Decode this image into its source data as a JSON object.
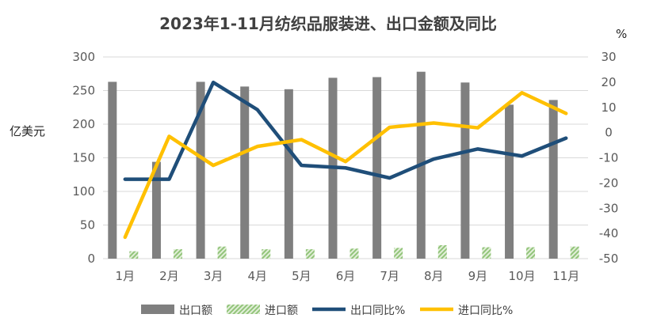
{
  "chart_data": {
    "type": "bar",
    "title": "2023年1-11月纺织品服装进、出口金额及同比",
    "ylabel": "亿美元",
    "y2label": "%",
    "ylim": [
      0,
      300
    ],
    "y2lim": [
      -50,
      30
    ],
    "yticks": [
      0,
      50,
      100,
      150,
      200,
      250,
      300
    ],
    "y2ticks": [
      -50,
      -40,
      -30,
      -20,
      -10,
      0,
      10,
      20,
      30
    ],
    "grid": true,
    "legend": "bottom",
    "categories": [
      "1月",
      "2月",
      "3月",
      "4月",
      "5月",
      "6月",
      "7月",
      "8月",
      "9月",
      "10月",
      "11月"
    ],
    "series": [
      {
        "name": "出口额",
        "type": "bar",
        "axis": "left",
        "color": "#7f7f7f",
        "values": [
          263,
          144,
          263,
          256,
          252,
          269,
          270,
          278,
          262,
          229,
          236
        ]
      },
      {
        "name": "进口额",
        "type": "bar",
        "axis": "left",
        "color": "#a9d18e",
        "pattern": "diagonal-hatch",
        "values": [
          11,
          14,
          18,
          14,
          14,
          15,
          16,
          20,
          17,
          17,
          18
        ]
      },
      {
        "name": "出口同比%",
        "type": "line",
        "axis": "right",
        "color": "#1f4e79",
        "values": [
          -18.5,
          -18.5,
          19.9,
          9.1,
          -13.0,
          -14.0,
          -18.0,
          -10.5,
          -6.5,
          -9.3,
          -2.2
        ]
      },
      {
        "name": "进口同比%",
        "type": "line",
        "axis": "right",
        "color": "#ffc000",
        "values": [
          -41.5,
          -1.5,
          -13.0,
          -5.5,
          -2.8,
          -11.5,
          2.1,
          3.8,
          1.9,
          15.8,
          7.6
        ]
      }
    ]
  }
}
